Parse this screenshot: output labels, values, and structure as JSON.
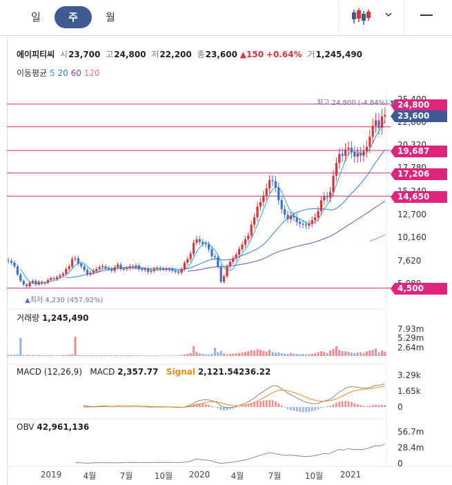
{
  "tabs": [
    {
      "label": "일",
      "active": false
    },
    {
      "label": "주",
      "active": true
    },
    {
      "label": "월",
      "active": false
    }
  ],
  "stock": {
    "name": "에이피티씨",
    "open_label": "시",
    "open": "23,700",
    "high_label": "고",
    "high": "24,800",
    "low_label": "저",
    "low": "22,200",
    "close_label": "종",
    "close": "23,600",
    "change": "▲150",
    "change_pct": "+0.64%",
    "volume_label": "거",
    "volume": "1,245,490"
  },
  "ma_legend": {
    "title": "이동평균",
    "items": [
      {
        "label": "5",
        "color": "#14b3c4"
      },
      {
        "label": "20",
        "color": "#2b7de0"
      },
      {
        "label": "60",
        "color": "#6a4bc4"
      },
      {
        "label": "120",
        "color": "#f07a7a"
      }
    ]
  },
  "price_axis": [
    "25,400",
    "22,860",
    "20,320",
    "17,780",
    "15,240",
    "12,700",
    "10,160",
    "7,620",
    "5,080"
  ],
  "price_lines": [
    {
      "value": "24,800",
      "style": "pink"
    },
    {
      "value": "23,600",
      "style": "navy"
    },
    {
      "value": "19,687",
      "style": "pink"
    },
    {
      "value": "17,206",
      "style": "pink"
    },
    {
      "value": "14,650",
      "style": "pink"
    },
    {
      "value": "4,500",
      "style": "pink"
    }
  ],
  "max_label": "최고 24,800 (-4.84%) ▼",
  "min_label": "▲최저 4,230 (457.92%)",
  "volume_panel": {
    "title": "거래량",
    "value": "1,245,490",
    "axis": [
      "7.93m",
      "5.29m",
      "2.64m"
    ]
  },
  "macd_panel": {
    "title": "MACD (12,26,9)",
    "macd_label": "MACD",
    "macd_value": "2,357.77",
    "signal_label": "Signal",
    "signal_value": "2,121.54",
    "hist_value": "236.22",
    "axis": [
      "3.29k",
      "1.65k",
      "0"
    ]
  },
  "obv_panel": {
    "title": "OBV",
    "value": "42,961,136",
    "axis": [
      "56.7m",
      "28.4m",
      "0"
    ]
  },
  "x_axis": [
    "2019",
    "4월",
    "7월",
    "10월",
    "2020",
    "4월",
    "7월",
    "10월",
    "2021"
  ],
  "chart_data": {
    "type": "candlestick",
    "interval": "weekly",
    "ylim": [
      4230,
      25400
    ],
    "series": [
      {
        "name": "5",
        "color": "#14b3c4"
      },
      {
        "name": "20",
        "color": "#2b7de0"
      },
      {
        "name": "60",
        "color": "#6a4bc4"
      },
      {
        "name": "120",
        "color": "#f07a7a"
      }
    ],
    "close": [
      7500,
      7300,
      6900,
      6000,
      5300,
      4900,
      4700,
      5100,
      5300,
      4900,
      5200,
      5000,
      5100,
      5400,
      5600,
      5500,
      5700,
      5900,
      6100,
      6600,
      6900,
      7700,
      7800,
      7200,
      6900,
      6500,
      6000,
      6200,
      6400,
      6600,
      6800,
      6900,
      6700,
      6600,
      6400,
      6800,
      7100,
      6600,
      6600,
      6700,
      6900,
      6800,
      7000,
      6600,
      6500,
      6600,
      6300,
      6400,
      6600,
      6700,
      6600,
      6600,
      6500,
      6600,
      6400,
      6300,
      6200,
      6600,
      7300,
      7700,
      8300,
      9500,
      9900,
      9600,
      9400,
      9300,
      8800,
      8000,
      7900,
      6900,
      5200,
      5800,
      6900,
      7400,
      7800,
      8200,
      8800,
      9300,
      9900,
      10300,
      11500,
      12300,
      13500,
      14000,
      14700,
      15500,
      16400,
      16300,
      15600,
      14200,
      13200,
      12600,
      12100,
      12500,
      12300,
      11800,
      11600,
      11500,
      11400,
      11600,
      12000,
      12300,
      13000,
      14200,
      14600,
      14500,
      15100,
      16900,
      18300,
      19300,
      19100,
      19800,
      20000,
      19500,
      19000,
      19400,
      19100,
      19600,
      20100,
      21200,
      22400,
      23000,
      22200,
      23450,
      23600
    ],
    "volume_m": [
      0.35,
      0.3,
      0.4,
      0.45,
      0.38,
      0.28,
      0.3,
      0.32,
      0.25,
      0.28,
      0.3,
      0.22,
      0.2,
      0.25,
      0.28,
      0.22,
      0.2,
      0.18,
      0.26,
      0.22,
      0.35,
      0.55,
      0.4,
      0.25,
      0.22,
      0.18,
      0.2,
      0.24,
      0.2,
      0.18,
      0.16,
      0.18,
      0.2,
      0.17,
      0.15,
      0.2,
      0.22,
      0.18,
      0.16,
      0.2,
      0.24,
      0.18,
      0.2,
      0.16,
      0.15,
      0.14,
      0.16,
      0.14,
      0.15,
      0.18,
      0.14,
      0.13,
      0.14,
      0.15,
      0.14,
      0.13,
      0.2,
      0.28,
      0.45,
      0.6,
      0.9,
      1.6,
      1.2,
      0.8,
      0.6,
      0.5,
      0.4,
      0.7,
      0.6,
      1.1,
      1.5,
      0.8,
      0.5,
      0.6,
      0.7,
      0.8,
      0.9,
      1.0,
      1.2,
      1.4,
      1.7,
      1.6,
      2.0,
      1.8,
      1.5,
      1.3,
      1.9,
      1.2,
      1.0,
      1.1,
      0.8,
      0.7,
      0.6,
      0.9,
      0.7,
      0.6,
      0.5,
      0.6,
      0.5,
      0.5,
      0.6,
      0.8,
      1.1,
      1.4,
      1.2,
      0.9,
      1.6,
      2.1,
      2.4,
      1.8,
      1.5,
      1.4,
      1.2,
      1.0,
      0.9,
      1.0,
      1.1,
      0.9,
      1.3,
      1.6,
      1.8,
      1.5,
      1.1,
      1.6,
      1.25
    ],
    "volume_spikes": {
      "4": 5.3,
      "22": 5.7,
      "61": 2.9,
      "68": 2.4,
      "108": 2.9,
      "121": 2.2
    }
  }
}
